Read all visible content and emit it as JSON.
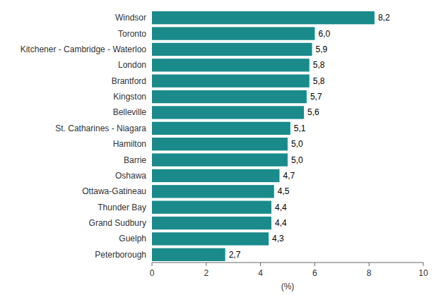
{
  "chart_data": {
    "type": "bar",
    "orientation": "horizontal",
    "categories": [
      "Peterborough",
      "Guelph",
      "Grand Sudbury",
      "Thunder Bay",
      "Ottawa-Gatineau",
      "Oshawa",
      "Barrie",
      "Hamilton",
      "St. Catharines - Niagara",
      "Belleville",
      "Kingston",
      "Brantford",
      "London",
      "Kitchener - Cambridge - Waterloo",
      "Toronto",
      "Windsor"
    ],
    "values": [
      2.7,
      4.3,
      4.4,
      4.4,
      4.5,
      4.7,
      5.0,
      5.0,
      5.1,
      5.6,
      5.7,
      5.8,
      5.8,
      5.9,
      6.0,
      8.2
    ],
    "value_labels": [
      "2,7",
      "4,3",
      "4,4",
      "4,4",
      "4,5",
      "4,7",
      "5,0",
      "5,0",
      "5,1",
      "5,6",
      "5,7",
      "5,8",
      "5,8",
      "5,9",
      "6,0",
      "8,2"
    ],
    "data_labels": true,
    "color": "#1a8a8a",
    "xlabel": "(%)",
    "xlim": [
      0,
      10
    ],
    "xticks": [
      0,
      2,
      4,
      6,
      8,
      10
    ],
    "grid": false
  }
}
